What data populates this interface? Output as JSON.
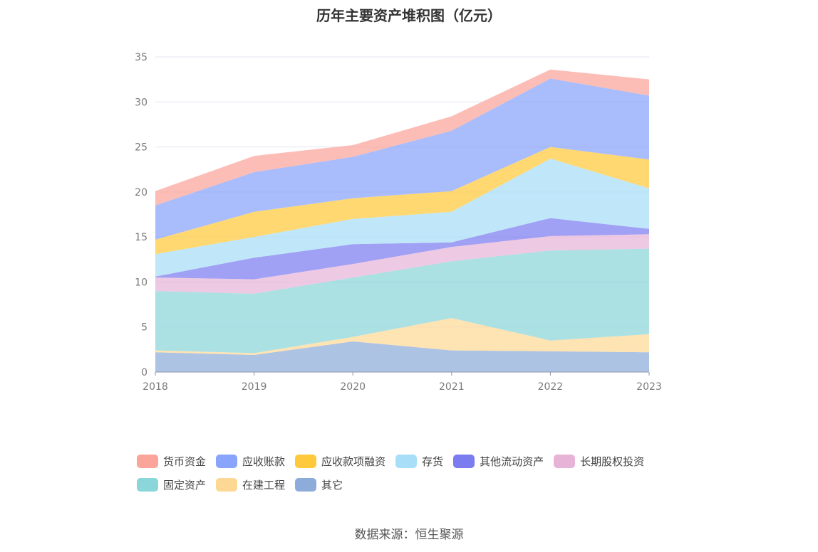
{
  "source_text": "数据来源：恒生聚源",
  "chart_data": {
    "type": "area",
    "stacked": true,
    "title": "历年主要资产堆积图（亿元）",
    "xlabel": "",
    "ylabel": "",
    "categories": [
      "2018",
      "2019",
      "2020",
      "2021",
      "2022",
      "2023"
    ],
    "ylim": [
      0,
      35
    ],
    "yticks": [
      0,
      5,
      10,
      15,
      20,
      25,
      30,
      35
    ],
    "grid": true,
    "legend_position": "bottom",
    "series": [
      {
        "name": "其它",
        "color": "#8eacd9",
        "values": [
          2.2,
          1.9,
          3.4,
          2.4,
          2.3,
          2.2
        ]
      },
      {
        "name": "在建工程",
        "color": "#fdd895",
        "values": [
          0.2,
          0.2,
          0.5,
          3.6,
          1.2,
          2.0
        ]
      },
      {
        "name": "固定资产",
        "color": "#8ad6d8",
        "values": [
          6.6,
          6.6,
          6.6,
          6.3,
          10.0,
          9.5
        ]
      },
      {
        "name": "长期股权投资",
        "color": "#e7b4d8",
        "values": [
          1.5,
          1.6,
          1.5,
          1.6,
          1.6,
          1.6
        ]
      },
      {
        "name": "其他流动资产",
        "color": "#7b7cf0",
        "values": [
          0.1,
          2.4,
          2.2,
          0.5,
          2.0,
          0.6
        ]
      },
      {
        "name": "存货",
        "color": "#a8def7",
        "values": [
          2.5,
          2.3,
          2.8,
          3.4,
          6.6,
          4.5
        ]
      },
      {
        "name": "应收款项融资",
        "color": "#ffc93c",
        "values": [
          1.6,
          2.8,
          2.3,
          2.3,
          1.3,
          3.2
        ]
      },
      {
        "name": "应收账款",
        "color": "#88a4fb",
        "values": [
          3.8,
          4.4,
          4.6,
          6.7,
          7.6,
          7.1
        ]
      },
      {
        "name": "货币资金",
        "color": "#fba49a",
        "values": [
          1.6,
          1.8,
          1.3,
          1.6,
          1.0,
          1.8
        ]
      }
    ],
    "legend_order": [
      "货币资金",
      "应收账款",
      "应收款项融资",
      "存货",
      "其他流动资产",
      "长期股权投资",
      "固定资产",
      "在建工程",
      "其它"
    ]
  }
}
